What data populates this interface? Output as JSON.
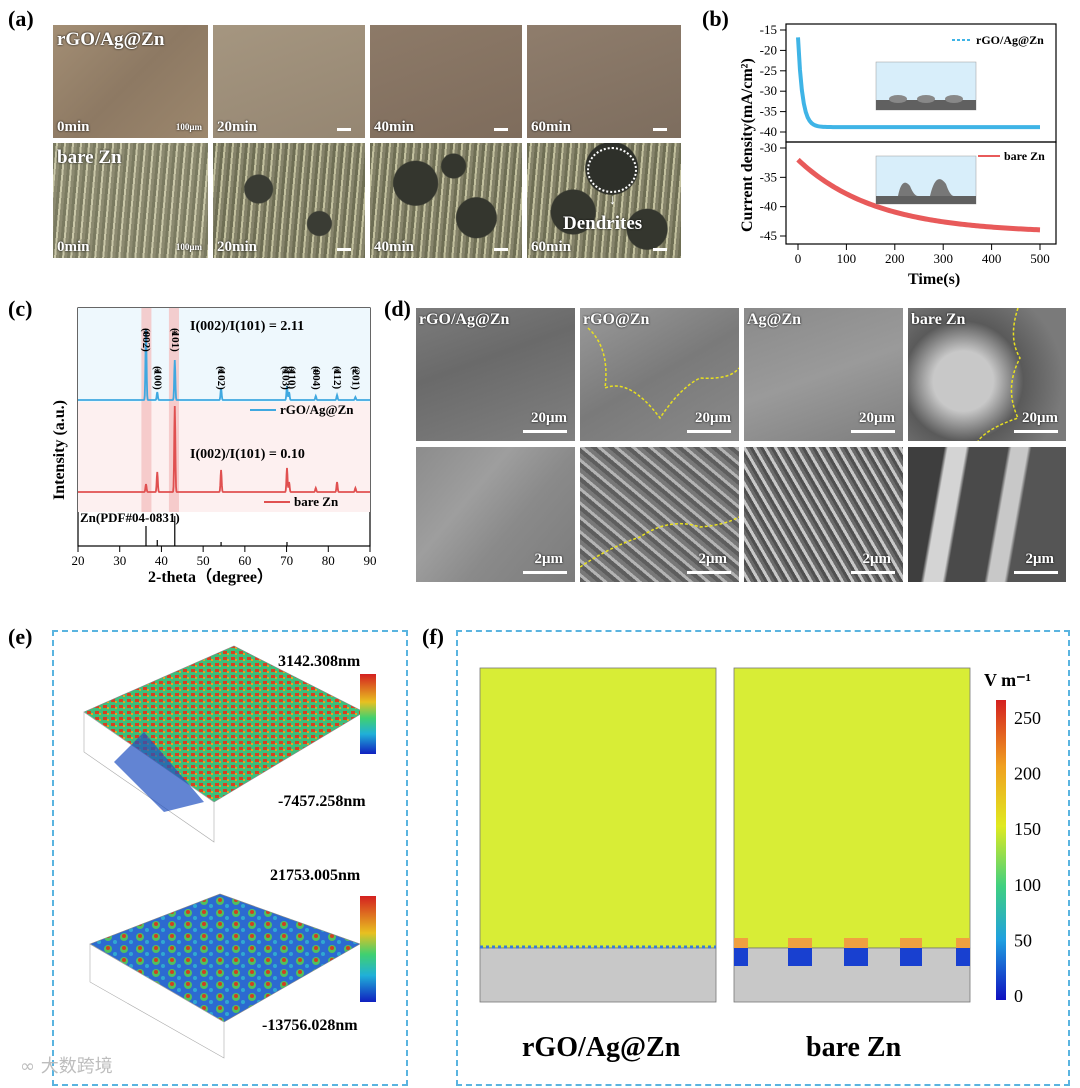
{
  "panel_labels": {
    "a": "(a)",
    "b": "(b)",
    "c": "(c)",
    "d": "(d)",
    "e": "(e)",
    "f": "(f)"
  },
  "panel_a": {
    "row_top_label": "rGO/Ag@Zn",
    "row_bottom_label": "bare Zn",
    "times": [
      "0min",
      "20min",
      "40min",
      "60min"
    ],
    "scale_label": "100μm",
    "dendrites_label": "Dendrites"
  },
  "panel_b": {
    "ylabel": "Current density(mA/cm²)",
    "xlabel": "Time(s)",
    "xticks": [
      "0",
      "100",
      "200",
      "300",
      "400",
      "500"
    ],
    "top_yticks": [
      "-15",
      "-20",
      "-25",
      "-30",
      "-35",
      "-40"
    ],
    "bottom_yticks": [
      "-30",
      "-35",
      "-40",
      "-45"
    ],
    "legend_top": "rGO/Ag@Zn",
    "legend_bottom": "bare Zn",
    "color_top": "#3fb4e6",
    "color_bottom": "#e85a5a"
  },
  "panel_c": {
    "ylabel": "Intensity (a.u.)",
    "xlabel": "2-theta（degree）",
    "xticks": [
      "20",
      "30",
      "40",
      "50",
      "60",
      "70",
      "80",
      "90"
    ],
    "peaks": [
      "(002)",
      "(100)",
      "(101)",
      "(102)",
      "(103)",
      "(110)",
      "(004)",
      "(112)",
      "(201)"
    ],
    "ratio_top_main": "I(002)/I(101) = 2.11",
    "ratio_bottom_main": "I(002)/I(101) = 0.10",
    "legend_top": "rGO/Ag@Zn",
    "legend_bottom": "bare Zn",
    "reference": "Zn(PDF#04-0831)",
    "color_top": "#3fa8e0",
    "color_bottom": "#e05050"
  },
  "panel_d": {
    "samples": [
      "rGO/Ag@Zn",
      "rGO@Zn",
      "Ag@Zn",
      "bare Zn"
    ],
    "scale_top": "20μm",
    "scale_bottom": "2μm"
  },
  "panel_e": {
    "top_max": "3142.308nm",
    "top_min": "-7457.258nm",
    "bottom_max": "21753.005nm",
    "bottom_min": "-13756.028nm"
  },
  "panel_f": {
    "unit": "V m⁻¹",
    "colorbar_ticks": [
      "250",
      "200",
      "150",
      "100",
      "50",
      "0"
    ],
    "label_left": "rGO/Ag@Zn",
    "label_right": "bare Zn"
  },
  "watermark": "大数跨境"
}
